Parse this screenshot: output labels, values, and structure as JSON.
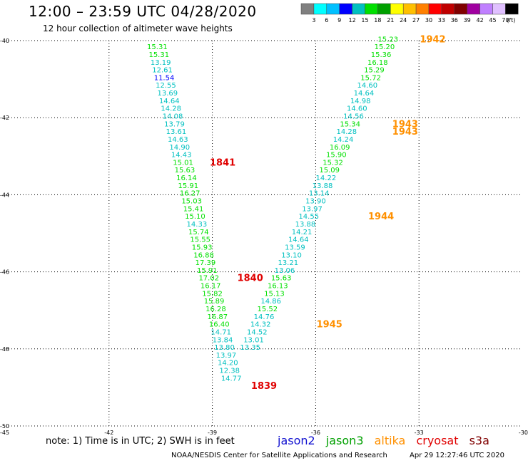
{
  "header": {
    "title": "12:00 – 23:59 UTC 04/28/2020",
    "subtitle": "12 hour collection of altimeter wave heights"
  },
  "colorbar": {
    "colors": [
      "#808080",
      "#00ffff",
      "#00c0ff",
      "#0000ff",
      "#00c0c0",
      "#00e000",
      "#00a000",
      "#ffff00",
      "#ffc000",
      "#ff8000",
      "#ff0000",
      "#c00000",
      "#800000",
      "#a000a0",
      "#c080ff",
      "#e0c0ff",
      "#000000"
    ],
    "labels": [
      "3",
      "6",
      "9",
      "12",
      "15",
      "18",
      "21",
      "24",
      "27",
      "30",
      "33",
      "36",
      "39",
      "42",
      "45",
      "70"
    ],
    "unit": "(ft)"
  },
  "note": "note:  1) Time is in UTC; 2) SWH is in feet",
  "legend": [
    {
      "name": "jason2",
      "color": "#1010d0"
    },
    {
      "name": "jason3",
      "color": "#00a000"
    },
    {
      "name": "altika",
      "color": "#ff9000"
    },
    {
      "name": "cryosat",
      "color": "#e00000"
    },
    {
      "name": "s3a",
      "color": "#800000"
    }
  ],
  "footer": {
    "agency": "NOAA/NESDIS Center for Satellite Applications and Research",
    "timestamp": "Apr 29 12:27:46 UTC 2020"
  },
  "chart_data": {
    "type": "scatter",
    "title": "12:00 – 23:59 UTC 04/28/2020",
    "subtitle": "12 hour collection of altimeter wave heights",
    "xlabel": "",
    "ylabel": "",
    "xlim": [
      -45,
      -30
    ],
    "ylim": [
      -50,
      -40
    ],
    "x_ticks": [
      "-45",
      "-42",
      "-39",
      "-36",
      "-33",
      "-30"
    ],
    "y_ticks": [
      "-40",
      "-42",
      "-44",
      "-46",
      "-48",
      "-50"
    ],
    "grid": true,
    "color_scale": {
      "bounds": [
        0,
        3,
        6,
        9,
        12,
        15,
        18,
        21,
        24,
        27,
        30,
        33,
        36,
        39,
        42,
        45,
        70
      ],
      "colors": [
        "#808080",
        "#00ffff",
        "#00c0ff",
        "#0000ff",
        "#00c0c0",
        "#00e000",
        "#00a000",
        "#ffff00",
        "#ffc000",
        "#ff8000",
        "#ff0000",
        "#c00000",
        "#800000",
        "#a000a0",
        "#c080ff",
        "#e0c0ff",
        "#000000"
      ]
    },
    "series": [
      {
        "name": "cryosat",
        "labels": [
          "15.31",
          "15.31",
          "13.19",
          "12.61",
          "11.54",
          "12.55",
          "13.69",
          "14.64",
          "14.28",
          "14.08",
          "13.79",
          "13.61",
          "14.63",
          "14.90",
          "14.43",
          "15.01",
          "15.63",
          "16.14",
          "15.91",
          "16.27",
          "15.03",
          "15.41",
          "15.10",
          "14.33",
          "15.74",
          "15.55",
          "15.93",
          "16.88",
          "17.39",
          "15.91",
          "17.02",
          "16.17",
          "15.82",
          "15.89",
          "16.28",
          "16.87",
          "16.40",
          "14.71",
          "13.84",
          "13.80",
          "13.97",
          "14.20",
          "12.38",
          "14.77"
        ],
        "points": [
          [
            -40.6,
            -40.15
          ],
          [
            -40.55,
            -40.35
          ],
          [
            -40.5,
            -40.55
          ],
          [
            -40.45,
            -40.75
          ],
          [
            -40.4,
            -40.95
          ],
          [
            -40.35,
            -41.15
          ],
          [
            -40.3,
            -41.35
          ],
          [
            -40.25,
            -41.55
          ],
          [
            -40.2,
            -41.75
          ],
          [
            -40.15,
            -41.95
          ],
          [
            -40.1,
            -42.15
          ],
          [
            -40.05,
            -42.35
          ],
          [
            -40.0,
            -42.55
          ],
          [
            -39.95,
            -42.75
          ],
          [
            -39.9,
            -42.95
          ],
          [
            -39.85,
            -43.15
          ],
          [
            -39.8,
            -43.35
          ],
          [
            -39.75,
            -43.55
          ],
          [
            -39.7,
            -43.75
          ],
          [
            -39.65,
            -43.95
          ],
          [
            -39.6,
            -44.15
          ],
          [
            -39.55,
            -44.35
          ],
          [
            -39.5,
            -44.55
          ],
          [
            -39.45,
            -44.75
          ],
          [
            -39.4,
            -44.95
          ],
          [
            -39.35,
            -45.15
          ],
          [
            -39.3,
            -45.35
          ],
          [
            -39.25,
            -45.55
          ],
          [
            -39.2,
            -45.75
          ],
          [
            -39.15,
            -45.95
          ],
          [
            -39.1,
            -46.15
          ],
          [
            -39.05,
            -46.35
          ],
          [
            -39.0,
            -46.55
          ],
          [
            -38.95,
            -46.75
          ],
          [
            -38.9,
            -46.95
          ],
          [
            -38.85,
            -47.15
          ],
          [
            -38.8,
            -47.35
          ],
          [
            -38.75,
            -47.55
          ],
          [
            -38.7,
            -47.75
          ],
          [
            -38.65,
            -47.95
          ],
          [
            -38.6,
            -48.15
          ],
          [
            -38.55,
            -48.35
          ],
          [
            -38.5,
            -48.55
          ],
          [
            -38.45,
            -48.75
          ]
        ],
        "time_labels": [
          {
            "text": "1841",
            "x": -38.7,
            "y": -43.15
          },
          {
            "text": "1840",
            "x": -37.9,
            "y": -46.15
          },
          {
            "text": "1839",
            "x": -37.5,
            "y": -48.95
          }
        ]
      },
      {
        "name": "altika",
        "labels": [
          "15.23",
          "15.20",
          "15.36",
          "16.18",
          "15.29",
          "15.72",
          "14.60",
          "14.64",
          "14.98",
          "14.60",
          "14.56",
          "15.34",
          "14.28",
          "14.24",
          "16.09",
          "15.90",
          "15.32",
          "15.09",
          "14.22",
          "13.88",
          "13.14",
          "13.90",
          "13.97",
          "14.55",
          "13.88",
          "14.21",
          "14.64",
          "13.59",
          "13.10",
          "13.21",
          "13.06",
          "15.63",
          "16.13",
          "15.13",
          "14.86",
          "15.52",
          "14.76",
          "14.32",
          "14.52",
          "13.01",
          "13.35"
        ],
        "points": [
          [
            -33.9,
            -39.95
          ],
          [
            -34.0,
            -40.15
          ],
          [
            -34.1,
            -40.35
          ],
          [
            -34.2,
            -40.55
          ],
          [
            -34.3,
            -40.75
          ],
          [
            -34.4,
            -40.95
          ],
          [
            -34.5,
            -41.15
          ],
          [
            -34.6,
            -41.35
          ],
          [
            -34.7,
            -41.55
          ],
          [
            -34.8,
            -41.75
          ],
          [
            -34.9,
            -41.95
          ],
          [
            -35.0,
            -42.15
          ],
          [
            -35.1,
            -42.35
          ],
          [
            -35.2,
            -42.55
          ],
          [
            -35.3,
            -42.75
          ],
          [
            -35.4,
            -42.95
          ],
          [
            -35.5,
            -43.15
          ],
          [
            -35.6,
            -43.35
          ],
          [
            -35.7,
            -43.55
          ],
          [
            -35.8,
            -43.75
          ],
          [
            -35.9,
            -43.95
          ],
          [
            -36.0,
            -44.15
          ],
          [
            -36.1,
            -44.35
          ],
          [
            -36.2,
            -44.55
          ],
          [
            -36.3,
            -44.75
          ],
          [
            -36.4,
            -44.95
          ],
          [
            -36.5,
            -45.15
          ],
          [
            -36.6,
            -45.35
          ],
          [
            -36.7,
            -45.55
          ],
          [
            -36.8,
            -45.75
          ],
          [
            -36.9,
            -45.95
          ],
          [
            -37.0,
            -46.15
          ],
          [
            -37.1,
            -46.35
          ],
          [
            -37.2,
            -46.55
          ],
          [
            -37.3,
            -46.75
          ],
          [
            -37.4,
            -46.95
          ],
          [
            -37.5,
            -47.15
          ],
          [
            -37.6,
            -47.35
          ],
          [
            -37.7,
            -47.55
          ],
          [
            -37.8,
            -47.75
          ],
          [
            -37.9,
            -47.95
          ]
        ],
        "time_labels": [
          {
            "text": "1942",
            "x": -32.6,
            "y": -39.95
          },
          {
            "text": "1943",
            "x": -33.4,
            "y": -42.15
          },
          {
            "text": "1943",
            "x": -33.4,
            "y": -42.35
          },
          {
            "text": "1944",
            "x": -34.1,
            "y": -44.55
          },
          {
            "text": "1945",
            "x": -35.6,
            "y": -47.35
          }
        ]
      }
    ]
  }
}
